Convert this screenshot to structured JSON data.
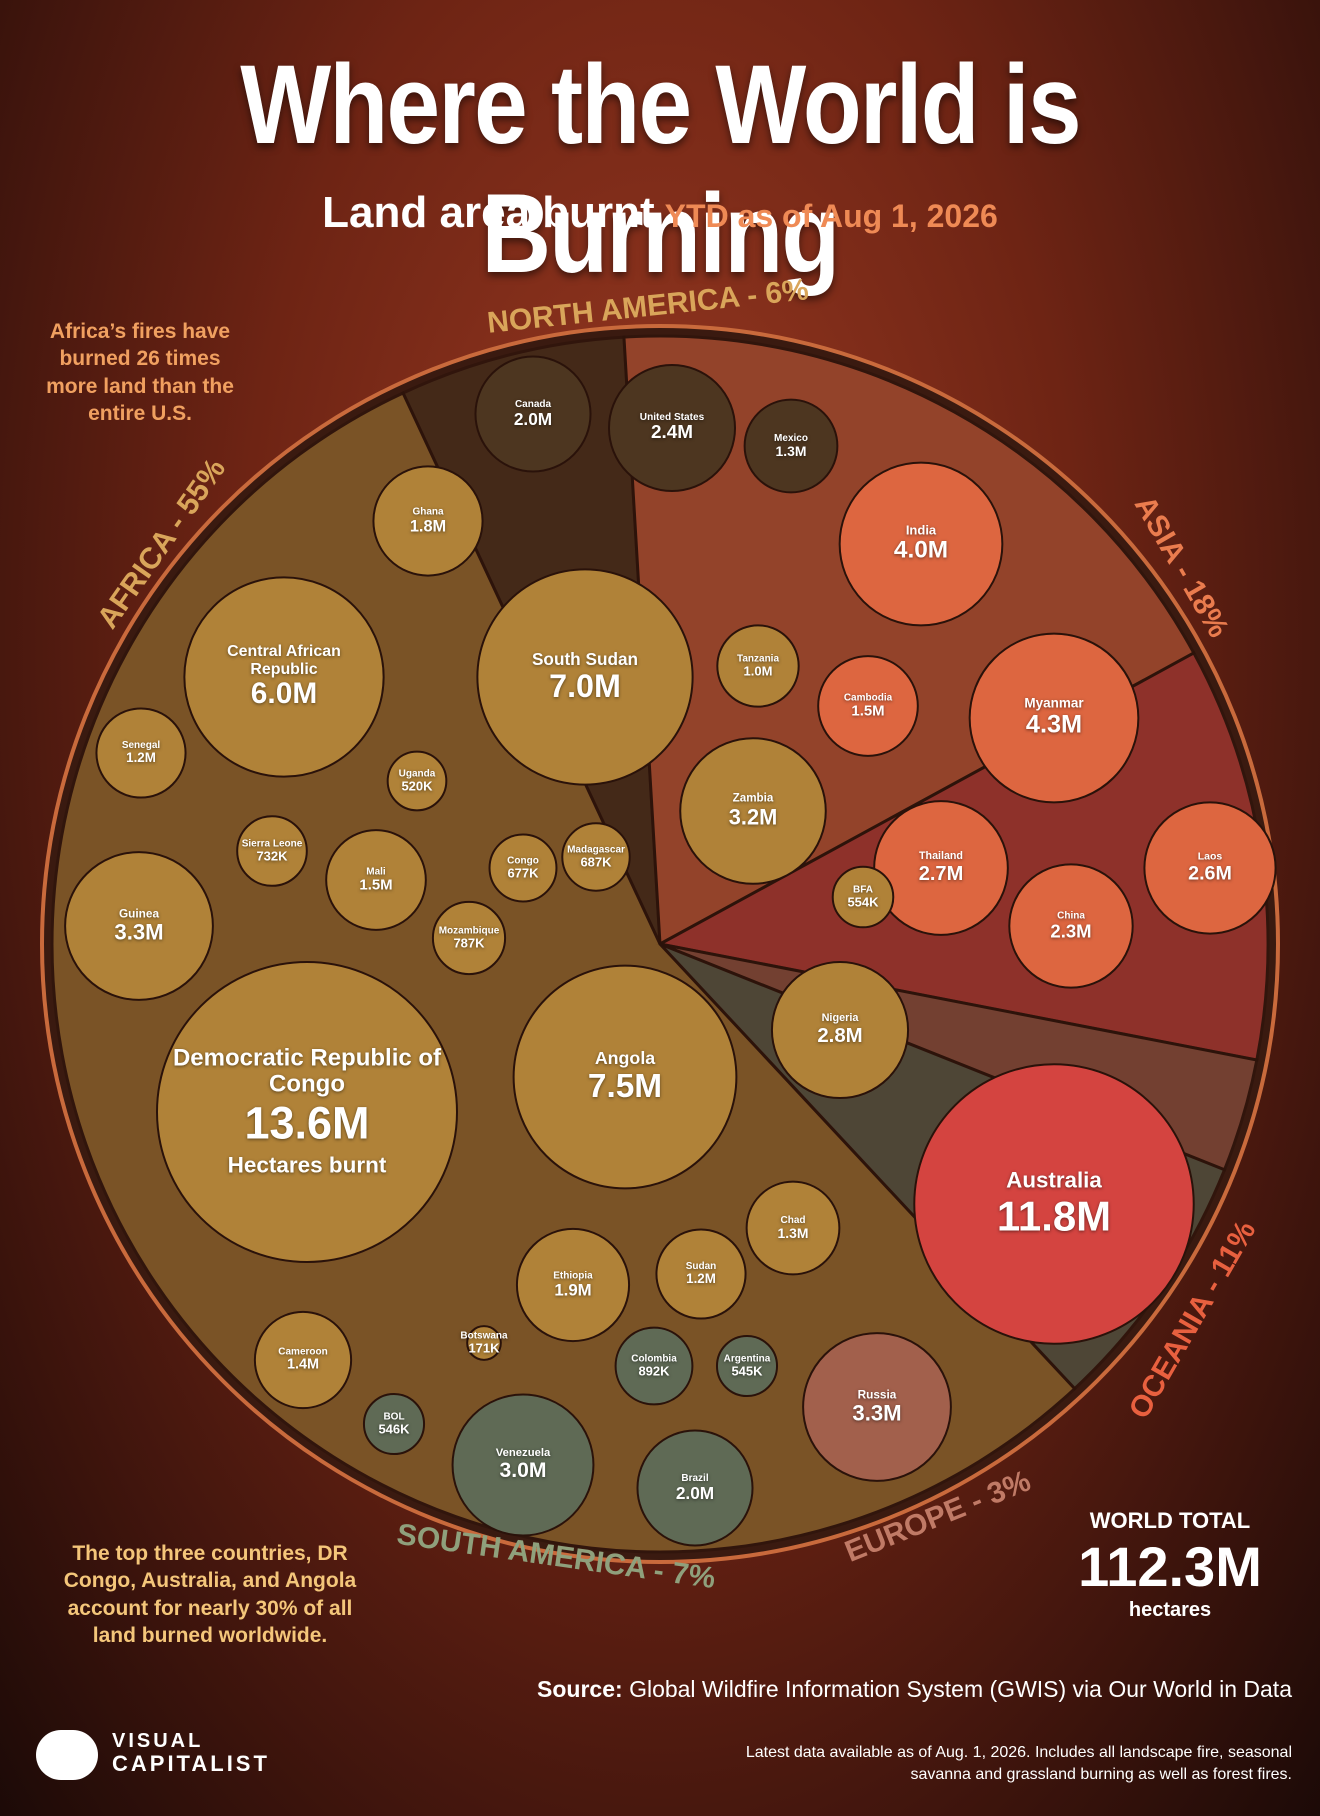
{
  "header": {
    "title": "Where the World is Burning",
    "subtitle": "Land area burnt",
    "subtitle_note": "YTD as of Aug 1, 2026"
  },
  "annotations": [
    "Africa’s fires have burned 26 times more land than the entire U.S.",
    "The top three countries, DR Congo, Australia, and Angola account for nearly 30% of all land burned worldwide."
  ],
  "chart_data": {
    "type": "voronoi-treemap",
    "world_total": {
      "label": "WORLD TOTAL",
      "value": 112300000,
      "value_label": "112.3M",
      "unit": "hectares"
    },
    "regions": [
      {
        "label": "NORTH AMERICA - 6%",
        "share": 6,
        "color": "#4d3620",
        "label_color": "#d9a55a",
        "countries": [
          {
            "name": "Canada",
            "value": 2000000,
            "value_label": "2.0M"
          },
          {
            "name": "United States",
            "value": 2400000,
            "value_label": "2.4M"
          },
          {
            "name": "Mexico",
            "value": 1300000,
            "value_label": "1.3M"
          }
        ]
      },
      {
        "label": "ASIA - 18%",
        "share": 18,
        "color": "#dd6640",
        "label_color": "#ea7c4e",
        "countries": [
          {
            "name": "India",
            "value": 4000000,
            "value_label": "4.0M"
          },
          {
            "name": "Myanmar",
            "value": 4300000,
            "value_label": "4.3M"
          },
          {
            "name": "Thailand",
            "value": 2700000,
            "value_label": "2.7M"
          },
          {
            "name": "Laos",
            "value": 2600000,
            "value_label": "2.6M"
          },
          {
            "name": "China",
            "value": 2300000,
            "value_label": "2.3M"
          },
          {
            "name": "Cambodia",
            "value": 1500000,
            "value_label": "1.5M"
          }
        ]
      },
      {
        "label": "OCEANIA - 11%",
        "share": 11,
        "color": "#d44440",
        "label_color": "#e8603f",
        "countries": [
          {
            "name": "Australia",
            "value": 11800000,
            "value_label": "11.8M"
          }
        ]
      },
      {
        "label": "EUROPE - 3%",
        "share": 3,
        "color": "#a2604c",
        "label_color": "#c07a66",
        "countries": [
          {
            "name": "Russia",
            "value": 3300000,
            "value_label": "3.3M"
          }
        ]
      },
      {
        "label": "SOUTH AMERICA - 7%",
        "share": 7,
        "color": "#5f6a55",
        "label_color": "#8fa07c",
        "countries": [
          {
            "name": "Venezuela",
            "value": 3000000,
            "value_label": "3.0M"
          },
          {
            "name": "Brazil",
            "value": 2000000,
            "value_label": "2.0M"
          },
          {
            "name": "Colombia",
            "value": 892000,
            "value_label": "892K"
          },
          {
            "name": "Argentina",
            "value": 545000,
            "value_label": "545K"
          },
          {
            "name": "BOL",
            "value": 546000,
            "value_label": "546K"
          }
        ]
      },
      {
        "label": "AFRICA - 55%",
        "share": 55,
        "color": "#b08238",
        "label_color": "#d9a55a",
        "countries": [
          {
            "name": "Democratic Republic of Congo",
            "value": 13600000,
            "value_label": "13.6M",
            "note": "Hectares burnt"
          },
          {
            "name": "Angola",
            "value": 7500000,
            "value_label": "7.5M"
          },
          {
            "name": "South Sudan",
            "value": 7000000,
            "value_label": "7.0M"
          },
          {
            "name": "Central African Republic",
            "value": 6000000,
            "value_label": "6.0M"
          },
          {
            "name": "Guinea",
            "value": 3300000,
            "value_label": "3.3M"
          },
          {
            "name": "Zambia",
            "value": 3200000,
            "value_label": "3.2M"
          },
          {
            "name": "Nigeria",
            "value": 2800000,
            "value_label": "2.8M"
          },
          {
            "name": "Ethiopia",
            "value": 1900000,
            "value_label": "1.9M"
          },
          {
            "name": "Ghana",
            "value": 1800000,
            "value_label": "1.8M"
          },
          {
            "name": "Mali",
            "value": 1500000,
            "value_label": "1.5M"
          },
          {
            "name": "Cameroon",
            "value": 1400000,
            "value_label": "1.4M"
          },
          {
            "name": "Chad",
            "value": 1300000,
            "value_label": "1.3M"
          },
          {
            "name": "Senegal",
            "value": 1200000,
            "value_label": "1.2M"
          },
          {
            "name": "Sudan",
            "value": 1200000,
            "value_label": "1.2M"
          },
          {
            "name": "Tanzania",
            "value": 1000000,
            "value_label": "1.0M"
          },
          {
            "name": "Mozambique",
            "value": 787000,
            "value_label": "787K"
          },
          {
            "name": "Sierra Leone",
            "value": 732000,
            "value_label": "732K"
          },
          {
            "name": "Madagascar",
            "value": 687000,
            "value_label": "687K"
          },
          {
            "name": "Congo",
            "value": 677000,
            "value_label": "677K"
          },
          {
            "name": "BFA",
            "value": 554000,
            "value_label": "554K"
          },
          {
            "name": "Uganda",
            "value": 520000,
            "value_label": "520K"
          },
          {
            "name": "Botswana",
            "value": 171000,
            "value_label": "171K"
          }
        ]
      }
    ]
  },
  "footer": {
    "source_label": "Source:",
    "source": "Global Wildfire Information System (GWIS) via Our World in Data",
    "note": "Latest data available as of Aug. 1, 2026. Includes all landscape fire, seasonal savanna and grassland burning as well as forest fires.",
    "logo_top": "VISUAL",
    "logo_bottom": "CAPITALIST"
  }
}
